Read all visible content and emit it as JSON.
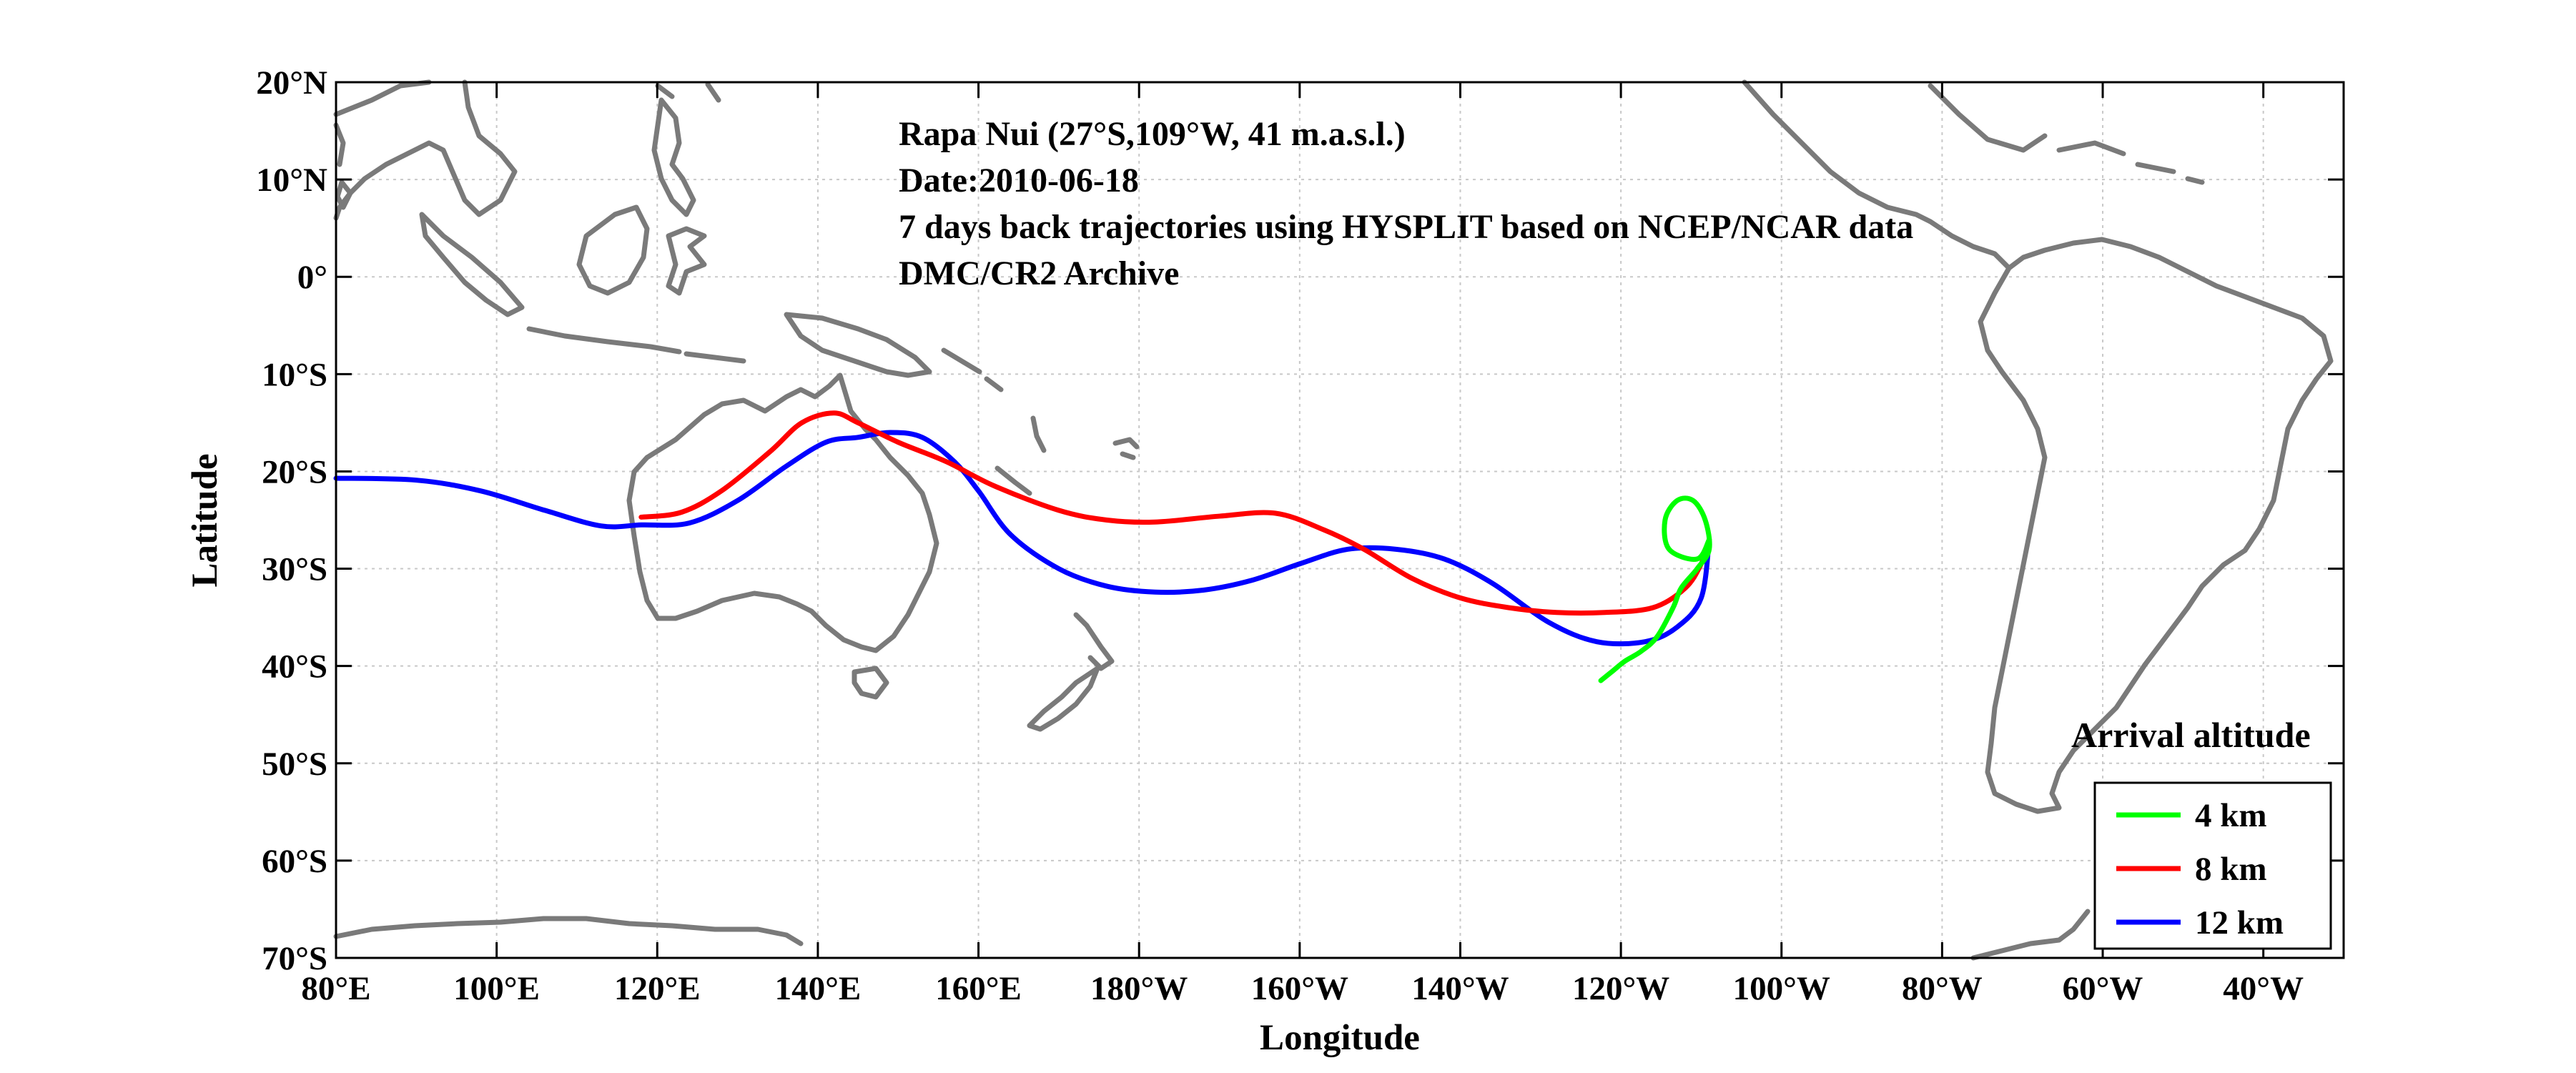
{
  "chart_data": {
    "type": "line",
    "subtype": "map-trajectories",
    "xlabel": "Longitude",
    "ylabel": "Latitude",
    "xlim": [
      80,
      330
    ],
    "ylim": [
      -70,
      20
    ],
    "grid": true,
    "x_ticks": [
      {
        "value": 80,
        "label": "80°E"
      },
      {
        "value": 100,
        "label": "100°E"
      },
      {
        "value": 120,
        "label": "120°E"
      },
      {
        "value": 140,
        "label": "140°E"
      },
      {
        "value": 160,
        "label": "160°E"
      },
      {
        "value": 180,
        "label": "180°W"
      },
      {
        "value": 200,
        "label": "160°W"
      },
      {
        "value": 220,
        "label": "140°W"
      },
      {
        "value": 240,
        "label": "120°W"
      },
      {
        "value": 260,
        "label": "100°W"
      },
      {
        "value": 280,
        "label": "80°W"
      },
      {
        "value": 300,
        "label": "60°W"
      },
      {
        "value": 320,
        "label": "40°W"
      }
    ],
    "y_ticks": [
      {
        "value": 20,
        "label": "20°N"
      },
      {
        "value": 10,
        "label": "10°N"
      },
      {
        "value": 0,
        "label": "0°"
      },
      {
        "value": -10,
        "label": "10°S"
      },
      {
        "value": -20,
        "label": "20°S"
      },
      {
        "value": -30,
        "label": "30°S"
      },
      {
        "value": -40,
        "label": "40°S"
      },
      {
        "value": -50,
        "label": "50°S"
      },
      {
        "value": -60,
        "label": "60°S"
      },
      {
        "value": -70,
        "label": "70°S"
      }
    ],
    "annotations": [
      "Rapa Nui (27°S,109°W, 41 m.a.s.l.)",
      "Date:2010-06-18",
      "7 days back trajectories using HYSPLIT based on NCEP/NCAR data",
      "DMC/CR2 Archive"
    ],
    "legend": {
      "title": "Arrival altitude",
      "placement": "bottom-right"
    },
    "series": [
      {
        "name": "4 km",
        "color": "#00ff00",
        "points": [
          [
            251,
            -27
          ],
          [
            249.5,
            -29
          ],
          [
            246,
            -28
          ],
          [
            245.5,
            -25
          ],
          [
            247,
            -23
          ],
          [
            249,
            -23
          ],
          [
            250.5,
            -25
          ],
          [
            251,
            -28
          ],
          [
            249.5,
            -30
          ],
          [
            247.5,
            -32
          ],
          [
            246.5,
            -34
          ],
          [
            244.5,
            -37
          ],
          [
            242.5,
            -38.5
          ],
          [
            240.5,
            -39.5
          ],
          [
            239,
            -40.5
          ],
          [
            237.5,
            -41.5
          ]
        ]
      },
      {
        "name": "8 km",
        "color": "#ff0000",
        "points": [
          [
            251,
            -27
          ],
          [
            250,
            -29.5
          ],
          [
            248,
            -32
          ],
          [
            244,
            -34
          ],
          [
            238,
            -34.5
          ],
          [
            232,
            -34.5
          ],
          [
            226,
            -34
          ],
          [
            220,
            -33
          ],
          [
            214,
            -31
          ],
          [
            208,
            -28
          ],
          [
            203,
            -26
          ],
          [
            197,
            -24.3
          ],
          [
            190,
            -24.6
          ],
          [
            182,
            -25.2
          ],
          [
            176,
            -25
          ],
          [
            170,
            -24
          ],
          [
            162,
            -21.5
          ],
          [
            156,
            -19
          ],
          [
            150,
            -17
          ],
          [
            145,
            -15
          ],
          [
            142,
            -14
          ],
          [
            138,
            -15
          ],
          [
            134,
            -18
          ],
          [
            128,
            -22
          ],
          [
            123,
            -24.2
          ],
          [
            118,
            -24.7
          ]
        ]
      },
      {
        "name": "12 km",
        "color": "#0000ff",
        "points": [
          [
            251,
            -27
          ],
          [
            250,
            -33
          ],
          [
            247,
            -36
          ],
          [
            243,
            -37.5
          ],
          [
            237,
            -37.5
          ],
          [
            231,
            -35.5
          ],
          [
            224,
            -31.5
          ],
          [
            218,
            -29
          ],
          [
            212,
            -28
          ],
          [
            206,
            -28
          ],
          [
            200,
            -29.5
          ],
          [
            194,
            -31.2
          ],
          [
            188,
            -32.2
          ],
          [
            182,
            -32.4
          ],
          [
            176,
            -31.8
          ],
          [
            170,
            -30
          ],
          [
            164,
            -26.5
          ],
          [
            160,
            -22
          ],
          [
            157,
            -19
          ],
          [
            153,
            -16.5
          ],
          [
            149,
            -16
          ],
          [
            145,
            -16.5
          ],
          [
            141,
            -17
          ],
          [
            136,
            -19.5
          ],
          [
            130,
            -23
          ],
          [
            124,
            -25.3
          ],
          [
            118,
            -25.5
          ],
          [
            113,
            -25.6
          ],
          [
            106,
            -24
          ],
          [
            98,
            -22
          ],
          [
            90,
            -20.9
          ],
          [
            80,
            -20.7
          ]
        ]
      }
    ]
  }
}
